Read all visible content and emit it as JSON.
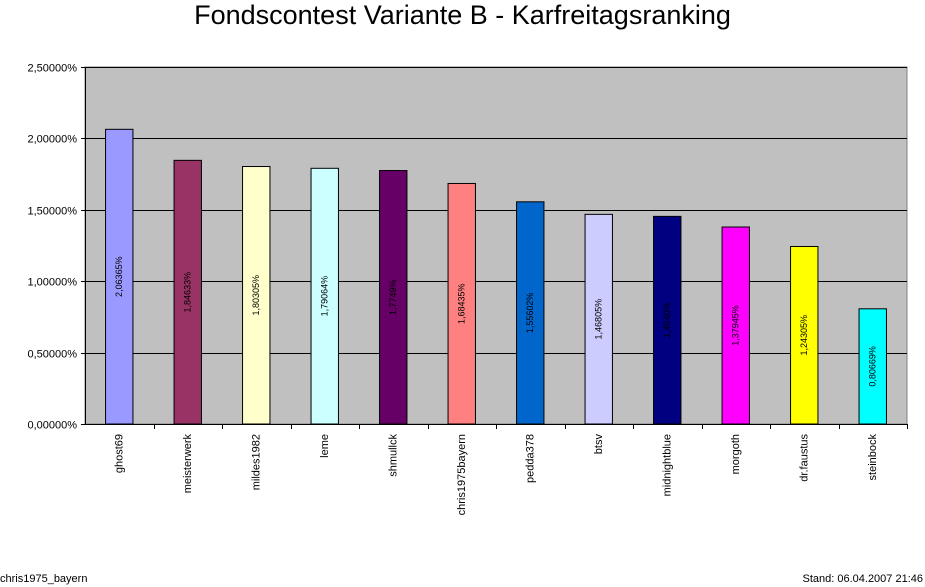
{
  "chart_data": {
    "type": "bar",
    "title": "Fondscontest Variante B - Karfreitagsranking",
    "xlabel": "",
    "ylabel": "",
    "ylim": [
      0,
      0.025
    ],
    "y_ticks": [
      0,
      0.005,
      0.01,
      0.015,
      0.02,
      0.025
    ],
    "y_tick_labels": [
      "0,00000%",
      "0,50000%",
      "1,00000%",
      "1,50000%",
      "2,00000%",
      "2,50000%"
    ],
    "grid": true,
    "plot_background": "#c0c0c0",
    "categories": [
      "ghost69",
      "meisterwerk",
      "mildes1982",
      "leme",
      "shmullck",
      "chris1975bayern",
      "pedda378",
      "btsv",
      "midnightblue",
      "morgoth",
      "dr.faustus",
      "steinbock"
    ],
    "values": [
      0.020636,
      0.018463,
      0.018031,
      0.017906,
      0.01775,
      0.016844,
      0.01556,
      0.014681,
      0.01454,
      0.013795,
      0.012431,
      0.008067
    ],
    "data_labels": [
      "2,06365%",
      "1,84633%",
      "1,80305%",
      "1,79064%",
      "1,7749%",
      "1,68435%",
      "1,55602%",
      "1,46805%",
      "1,4540%",
      "1,37945%",
      "1,24305%",
      "0,80669%"
    ],
    "colors": [
      "#9999ff",
      "#993366",
      "#ffffcc",
      "#ccffff",
      "#660066",
      "#ff8080",
      "#0066cc",
      "#ccccff",
      "#000080",
      "#ff00ff",
      "#ffff00",
      "#00ffff"
    ],
    "label_colors": [
      "#000000",
      "#000000",
      "#000000",
      "#000000",
      "#000000",
      "#000000",
      "#000000",
      "#000000",
      "#000000",
      "#000000",
      "#000000",
      "#000000"
    ]
  },
  "footer": {
    "author": "chris1975_bayern",
    "stand_label": "Stand:",
    "stand_value": "06.04.2007 21:46"
  }
}
